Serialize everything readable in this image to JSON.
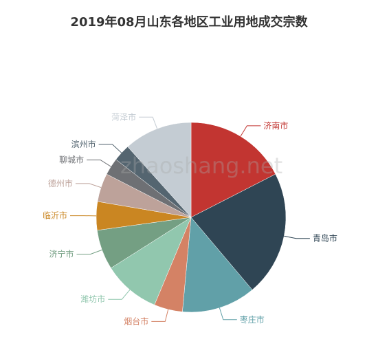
{
  "watermark": "zhaoshang.net",
  "chart_data": {
    "type": "pie",
    "title": "2019年08月山东各地区工业用地成交宗数",
    "start_angle_deg": 90,
    "direction": "clockwise",
    "labels": [
      "济南市",
      "青岛市",
      "枣庄市",
      "烟台市",
      "潍坊市",
      "济宁市",
      "临沂市",
      "德州市",
      "聊城市",
      "滨州市",
      "菏泽市"
    ],
    "values": [
      9,
      11,
      6.5,
      2.5,
      5,
      3.5,
      2.5,
      2.5,
      1.5,
      1.5,
      6
    ],
    "colors": [
      "#c23531",
      "#2f4554",
      "#61a0a8",
      "#d48265",
      "#91c7ae",
      "#749f83",
      "#ca8622",
      "#bda29a",
      "#6e7074",
      "#546570",
      "#c4ccd3"
    ]
  }
}
